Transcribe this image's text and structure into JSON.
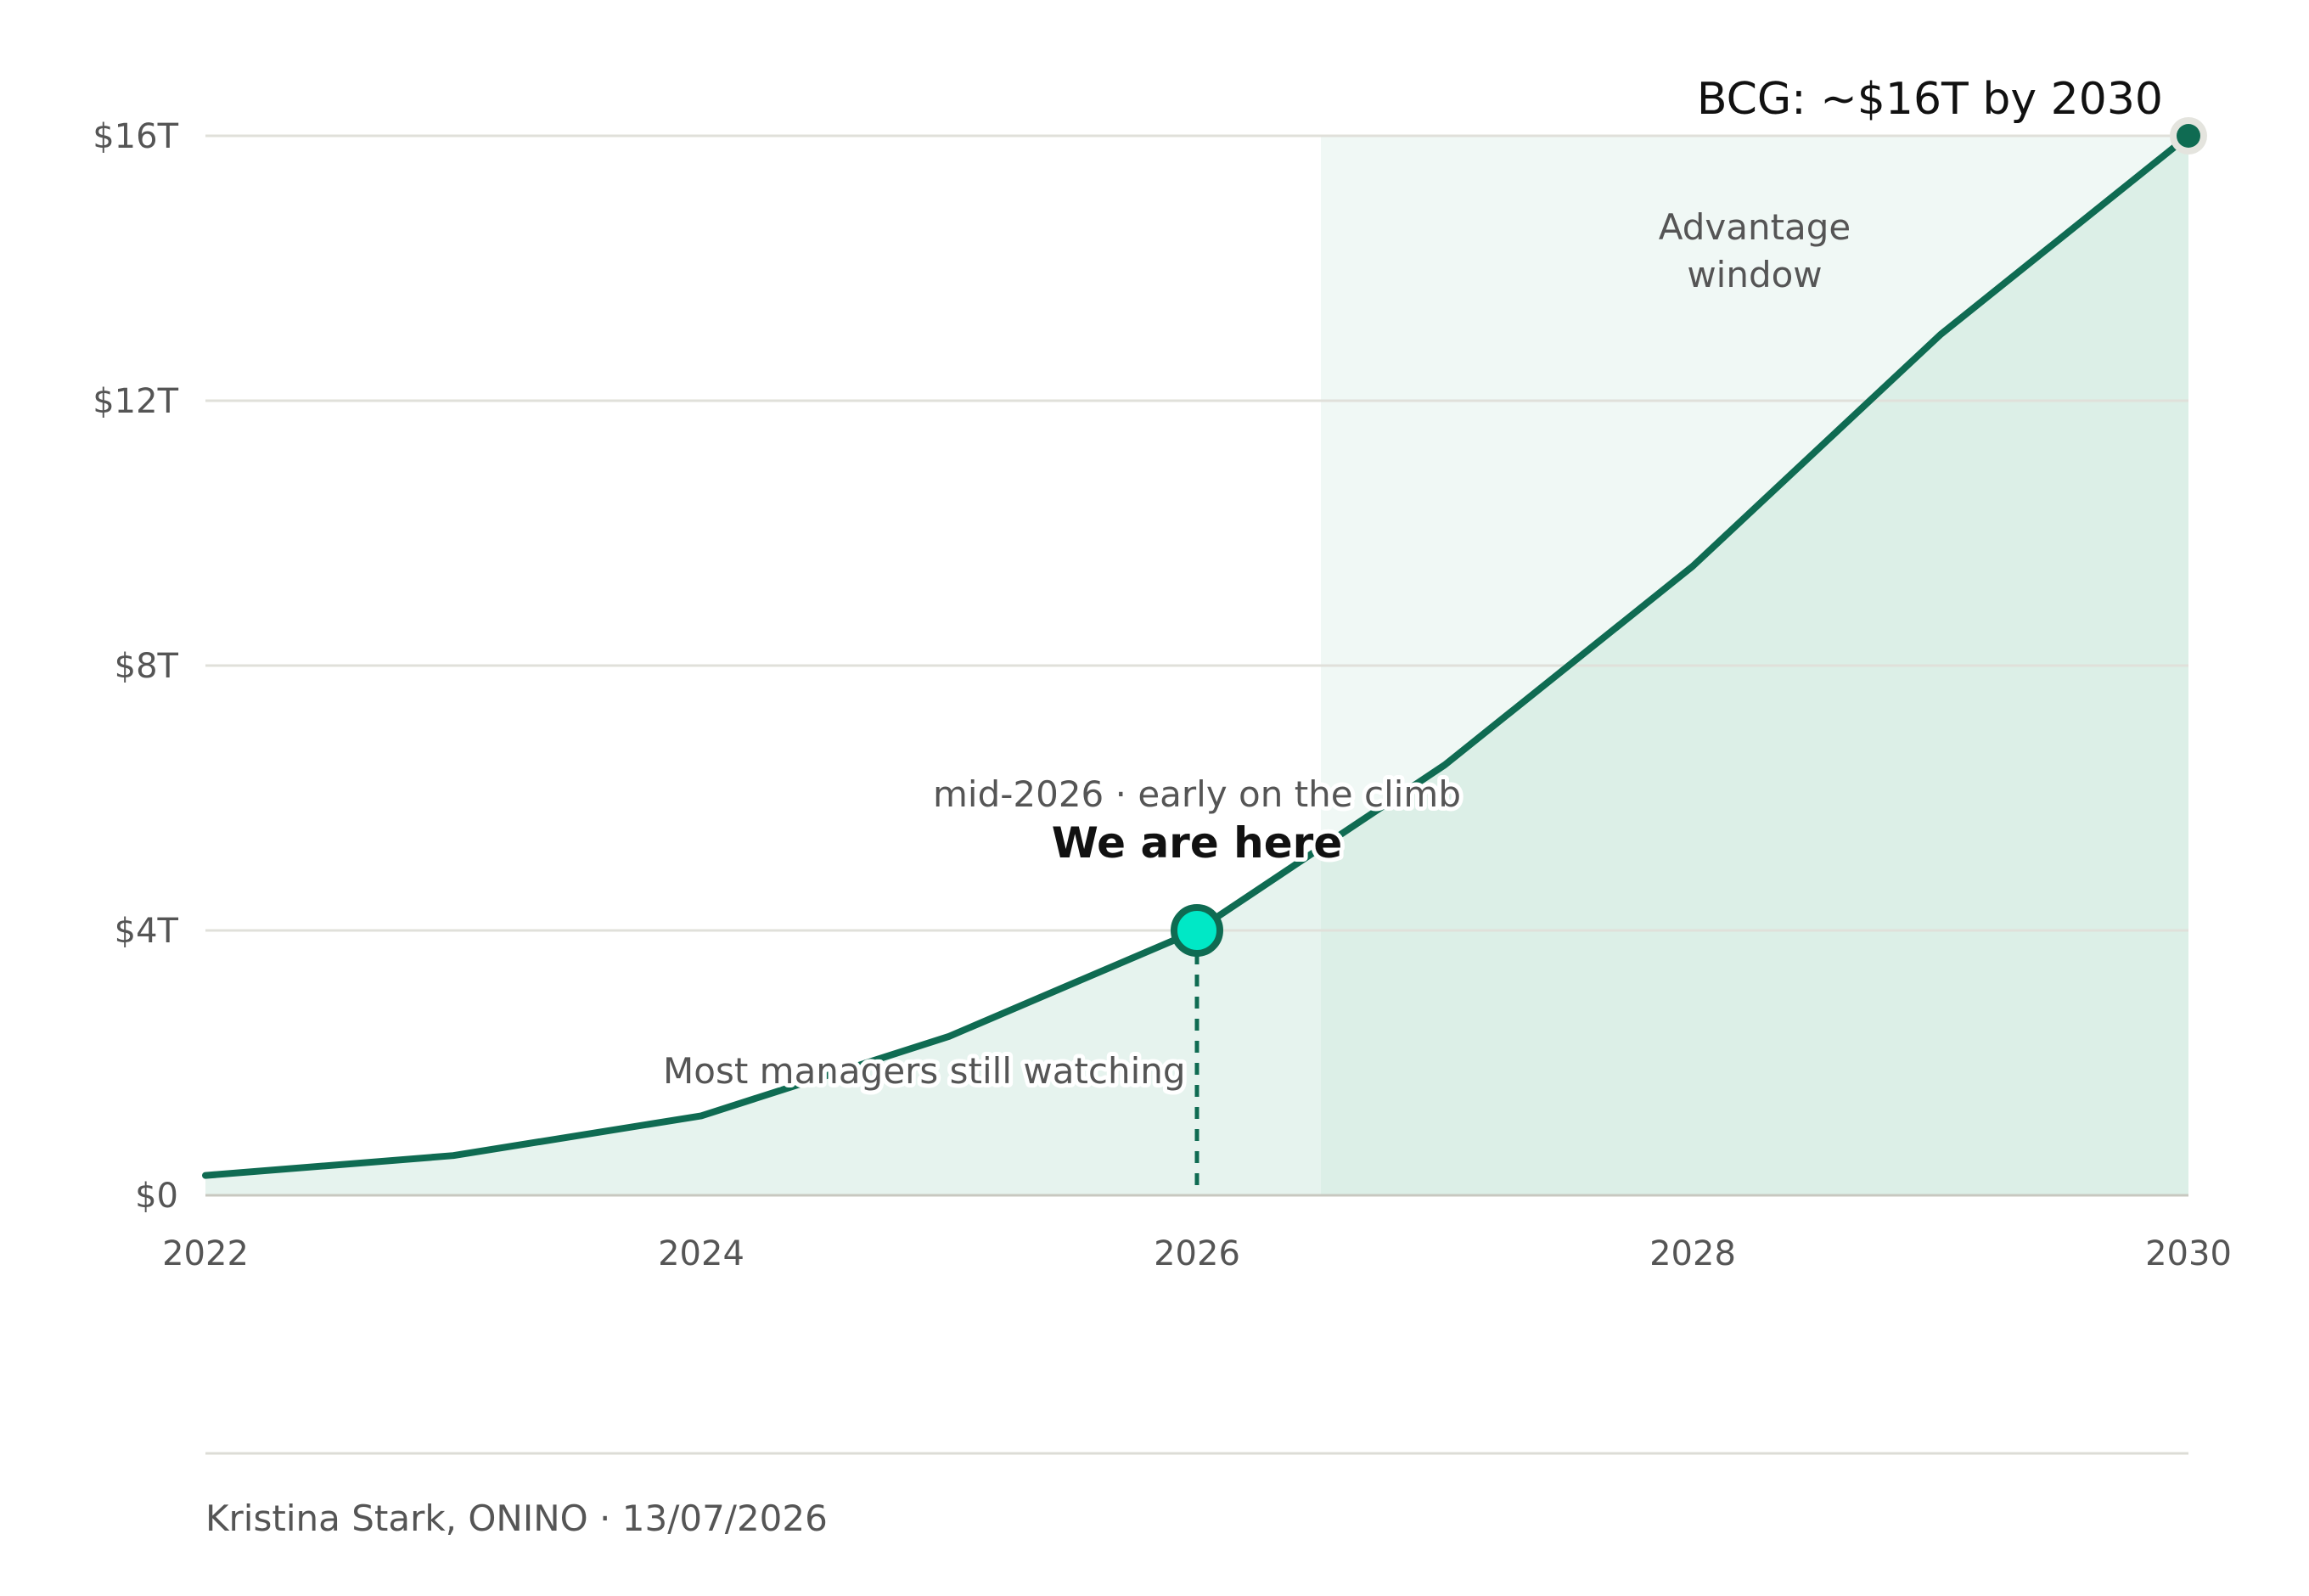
{
  "chart_data": {
    "type": "area",
    "x": [
      2022,
      2023,
      2024,
      2025,
      2026,
      2027,
      2028,
      2029,
      2030
    ],
    "y": [
      0.3,
      0.6,
      1.2,
      2.4,
      4.0,
      6.5,
      9.5,
      13.0,
      16.0
    ],
    "xlim": [
      2022,
      2030
    ],
    "ylim": [
      0,
      16
    ],
    "x_ticks": [
      2022,
      2024,
      2026,
      2028,
      2030
    ],
    "x_tick_labels": [
      "2022",
      "2024",
      "2026",
      "2028",
      "2030"
    ],
    "y_ticks": [
      0,
      4,
      8,
      12,
      16
    ],
    "y_tick_labels": [
      "$0",
      "$4T",
      "$8T",
      "$12T",
      "$16T"
    ],
    "grid": "horizontal",
    "highlight_region": {
      "x_start": 2026.5,
      "x_end": 2030,
      "label_lines": [
        "Advantage",
        "window"
      ]
    },
    "marker": {
      "x": 2026,
      "y": 4,
      "title": "We are here",
      "subtitle": "mid-2026 · early on the climb"
    },
    "end_point": {
      "x": 2030,
      "y": 16,
      "label": "BCG: ~$16T by 2030"
    },
    "annotation": {
      "text": "Most managers still watching",
      "x": 2024.9,
      "y": 1.9
    }
  },
  "footer": {
    "text": "Kristina Stark, ONINO · 13/07/2026"
  },
  "colors": {
    "line": "#0f6b52",
    "area_fill": "#e6f3ee",
    "window_fill": "#f0f8f5",
    "window_overlap_fill": "#dcefe7",
    "marker_fill": "#00e8c6",
    "grid": "#e0e0da",
    "axis": "#c8c8c0",
    "end_point_halo": "#e4e4de"
  }
}
